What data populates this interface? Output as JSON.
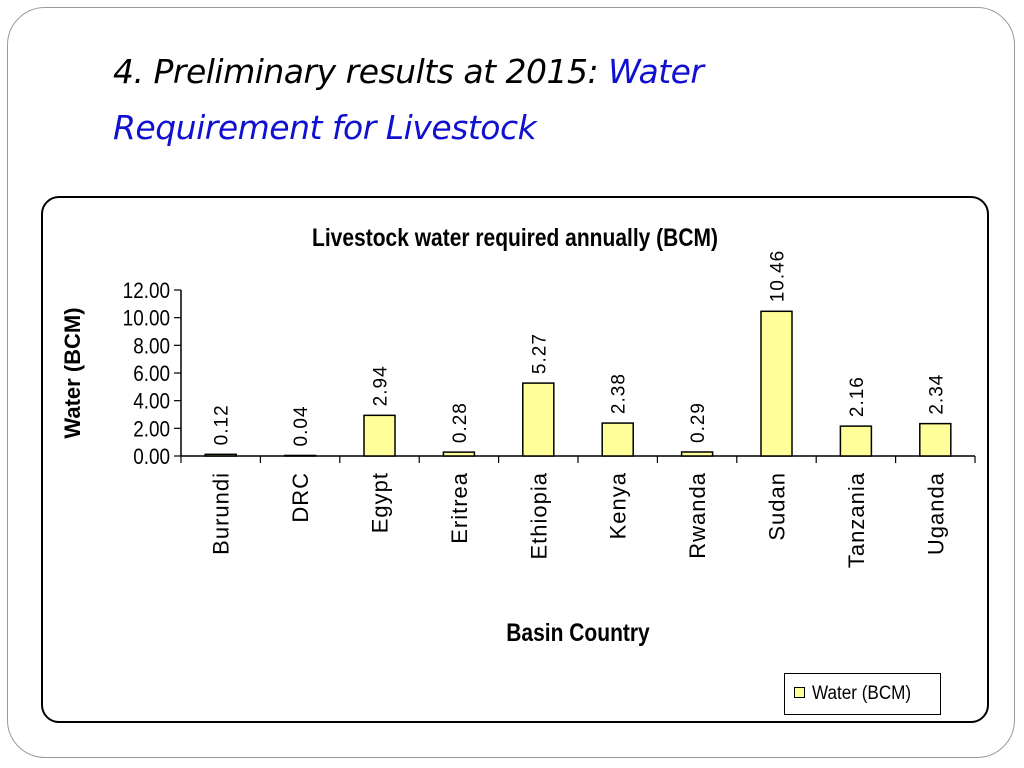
{
  "slide": {
    "title_prefix": "4. Preliminary results at 2015: ",
    "title_highlight": "Water Requirement for Livestock"
  },
  "colors": {
    "bar_fill": "#ffff99",
    "bar_stroke": "#000000",
    "title_accent": "#1010d0"
  },
  "chart_data": {
    "type": "bar",
    "title": "Livestock water required annually (BCM)",
    "xlabel": "Basin Country",
    "ylabel": "Water (BCM)",
    "categories": [
      "Burundi",
      "DRC",
      "Egypt",
      "Eritrea",
      "Ethiopia",
      "Kenya",
      "Rwanda",
      "Sudan",
      "Tanzania",
      "Uganda"
    ],
    "series": [
      {
        "name": "Water (BCM)",
        "values": [
          0.12,
          0.04,
          2.94,
          0.28,
          5.27,
          2.38,
          0.29,
          10.46,
          2.16,
          2.34
        ]
      }
    ],
    "data_labels": [
      "0.12",
      "0.04",
      "2.94",
      "0.28",
      "5.27",
      "2.38",
      "0.29",
      "10.46",
      "2.16",
      "2.34"
    ],
    "ylim": [
      0,
      12
    ],
    "yticks": [
      0,
      2,
      4,
      6,
      8,
      10,
      12
    ],
    "ytick_labels": [
      "0.00",
      "2.00",
      "4.00",
      "6.00",
      "8.00",
      "10.00",
      "12.00"
    ],
    "grid": false,
    "legend_position": "bottom-right"
  }
}
